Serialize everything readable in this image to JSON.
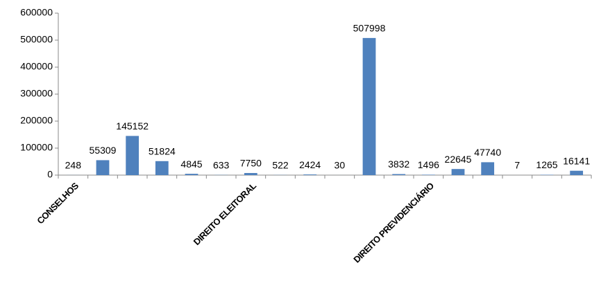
{
  "chart_data": {
    "type": "bar",
    "categories": [
      "CONSELHOS",
      null,
      null,
      null,
      null,
      null,
      "DIREITO ELEITORAL",
      null,
      null,
      null,
      null,
      null,
      "DIREITO PREVIDENCIÁRIO",
      null,
      null,
      null,
      null,
      null
    ],
    "values": [
      248,
      55309,
      145152,
      51824,
      4845,
      633,
      7750,
      522,
      2424,
      30,
      507998,
      3832,
      1496,
      22645,
      47740,
      7,
      1265,
      16141
    ],
    "color": "#4f81bd",
    "ylim": [
      0,
      600000
    ],
    "yticks": [
      0,
      100000,
      200000,
      300000,
      400000,
      500000,
      600000
    ],
    "grid": false
  }
}
